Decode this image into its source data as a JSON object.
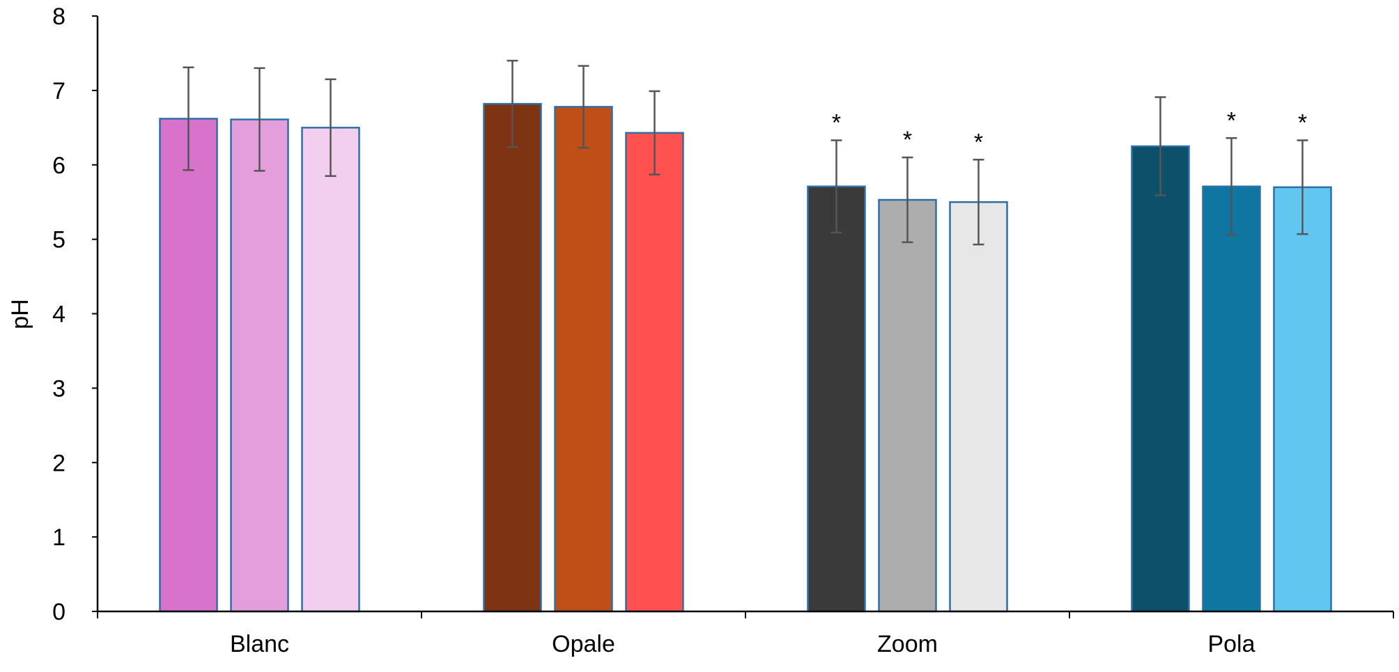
{
  "chart_data": {
    "type": "bar",
    "title": "",
    "xlabel": "",
    "ylabel": "pH",
    "ylim": [
      0,
      8
    ],
    "yticks": [
      "0",
      "1",
      "2",
      "3",
      "4",
      "5",
      "6",
      "7",
      "8"
    ],
    "grid": false,
    "legend": "none",
    "bar_outline_color": "#2E6FA8",
    "error_bar_color": "#555555",
    "significance_marker": "*",
    "categories": [
      {
        "label": "Blanc",
        "bars": [
          {
            "value": 6.62,
            "error": 0.69,
            "color": "#D873CB",
            "significant": false
          },
          {
            "value": 6.61,
            "error": 0.69,
            "color": "#E59EDC",
            "significant": false
          },
          {
            "value": 6.5,
            "error": 0.65,
            "color": "#F2CFEE",
            "significant": false
          }
        ]
      },
      {
        "label": "Opale",
        "bars": [
          {
            "value": 6.82,
            "error": 0.58,
            "color": "#7E3312",
            "significant": false
          },
          {
            "value": 6.78,
            "error": 0.55,
            "color": "#C04F17",
            "significant": false
          },
          {
            "value": 6.43,
            "error": 0.56,
            "color": "#FF5150",
            "significant": false
          }
        ]
      },
      {
        "label": "Zoom",
        "bars": [
          {
            "value": 5.71,
            "error": 0.62,
            "color": "#3A3A3A",
            "significant": true
          },
          {
            "value": 5.53,
            "error": 0.57,
            "color": "#ADADAD",
            "significant": true
          },
          {
            "value": 5.5,
            "error": 0.57,
            "color": "#E7E7E7",
            "significant": true
          }
        ]
      },
      {
        "label": "Pola",
        "bars": [
          {
            "value": 6.25,
            "error": 0.66,
            "color": "#0D5069",
            "significant": false
          },
          {
            "value": 5.71,
            "error": 0.65,
            "color": "#0F76A2",
            "significant": true
          },
          {
            "value": 5.7,
            "error": 0.63,
            "color": "#61C6F0",
            "significant": true
          }
        ]
      }
    ]
  }
}
